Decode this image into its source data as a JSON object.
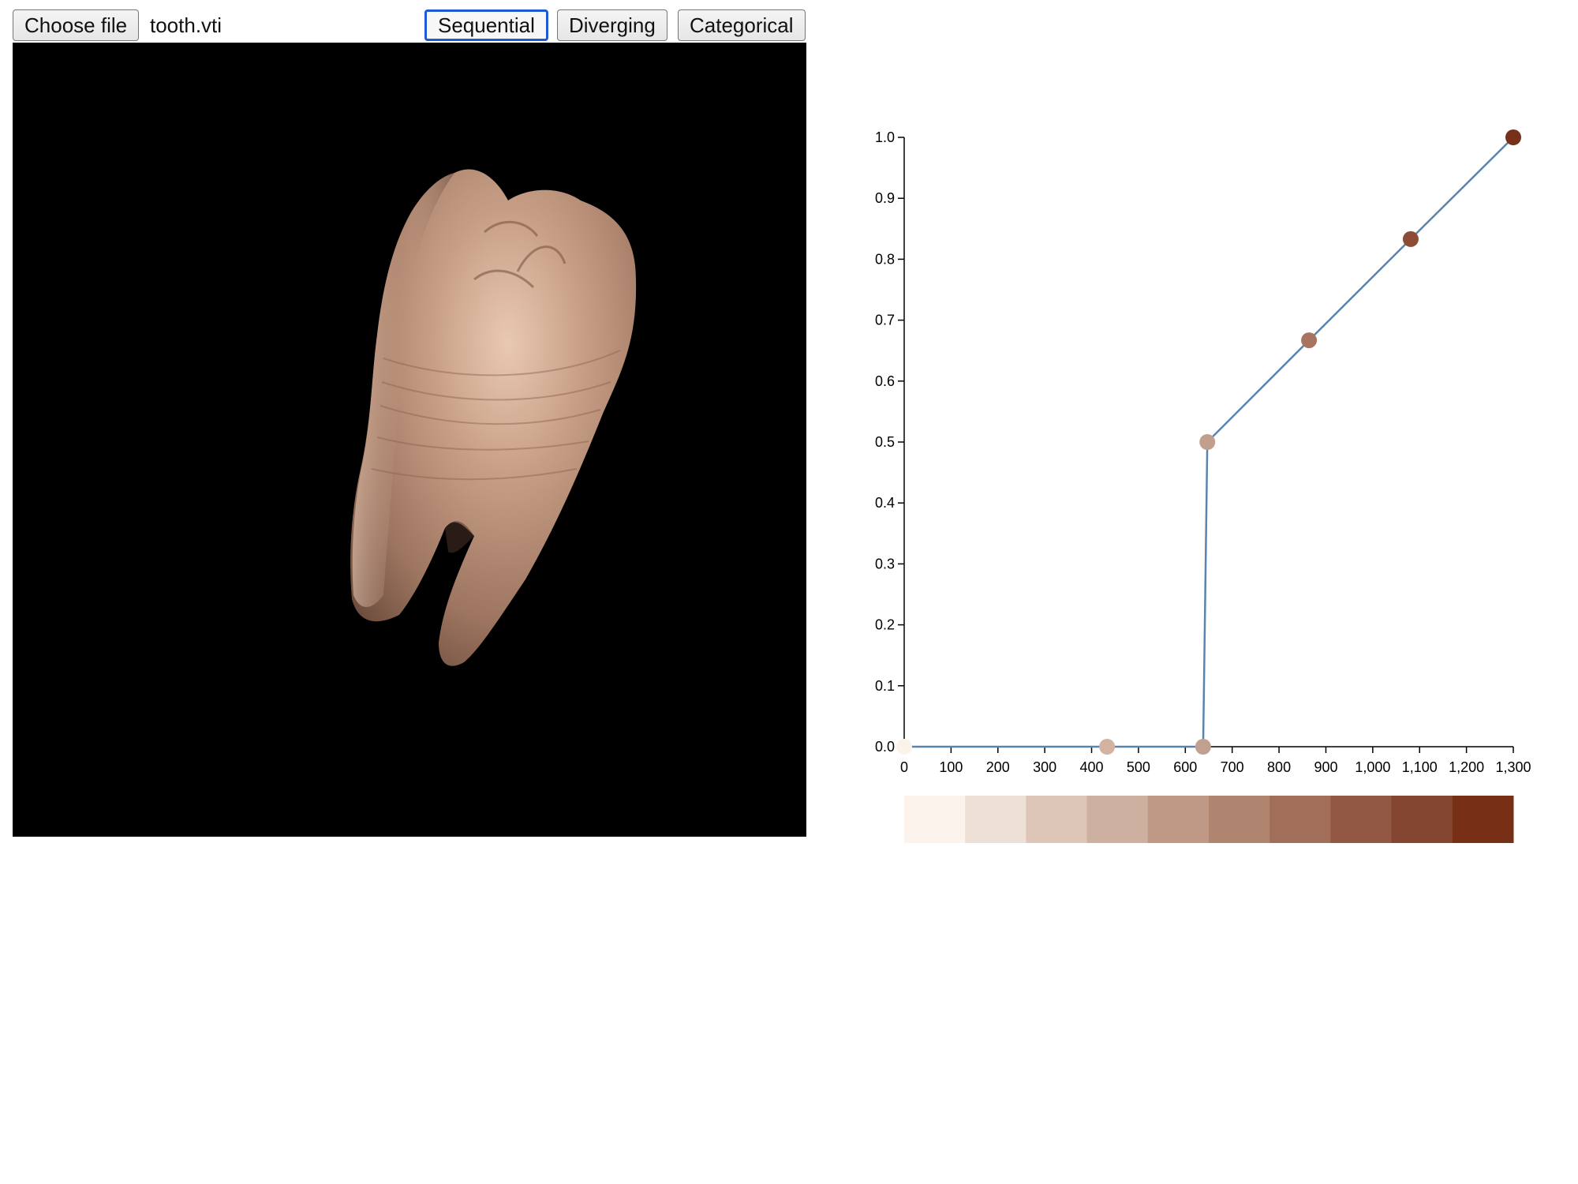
{
  "toolbar": {
    "choose_file_label": "Choose file",
    "file_name": "tooth.vti",
    "scheme_buttons": [
      {
        "label": "Sequential",
        "active": true
      },
      {
        "label": "Diverging",
        "active": false
      },
      {
        "label": "Categorical",
        "active": false
      }
    ]
  },
  "viewport": {
    "background": "#000000",
    "object": "volume-rendered tooth",
    "object_color": "#c49a82"
  },
  "colors": {
    "line": "#5b84ad",
    "axis": "#000000",
    "focus_accent": "#1e5ad6"
  },
  "chart_data": {
    "type": "line",
    "title": "",
    "xlabel": "",
    "ylabel": "",
    "xlim": [
      0,
      1300
    ],
    "ylim": [
      0,
      1.0
    ],
    "x_ticks": [
      "0",
      "100",
      "200",
      "300",
      "400",
      "500",
      "600",
      "700",
      "800",
      "900",
      "1,000",
      "1,100",
      "1,200",
      "1,300"
    ],
    "x_tick_values": [
      0,
      100,
      200,
      300,
      400,
      500,
      600,
      700,
      800,
      900,
      1000,
      1100,
      1200,
      1300
    ],
    "y_ticks": [
      "0.0",
      "0.1",
      "0.2",
      "0.3",
      "0.4",
      "0.5",
      "0.6",
      "0.7",
      "0.8",
      "0.9",
      "1.0"
    ],
    "y_tick_values": [
      0,
      0.1,
      0.2,
      0.3,
      0.4,
      0.5,
      0.6,
      0.7,
      0.8,
      0.9,
      1.0
    ],
    "series": [
      {
        "name": "",
        "points": [
          {
            "x": 0,
            "y": 0.0,
            "color": "#fbf2ea"
          },
          {
            "x": 433,
            "y": 0.0,
            "color": "#d2b3a2"
          },
          {
            "x": 638,
            "y": 0.0,
            "color": "#c0a08f"
          },
          {
            "x": 647,
            "y": 0.5,
            "color": "#c29f8d"
          },
          {
            "x": 864,
            "y": 0.667,
            "color": "#a8745f"
          },
          {
            "x": 1081,
            "y": 0.833,
            "color": "#8c4c36"
          },
          {
            "x": 1300,
            "y": 1.0,
            "color": "#77301a"
          }
        ]
      }
    ],
    "colorbar": [
      "#fcf4ec",
      "#ede0d6",
      "#ddc5b8",
      "#ceb0a0",
      "#bf9985",
      "#b08570",
      "#a16f59",
      "#935844",
      "#844630",
      "#772f16"
    ],
    "grid": false,
    "legend": "none"
  }
}
